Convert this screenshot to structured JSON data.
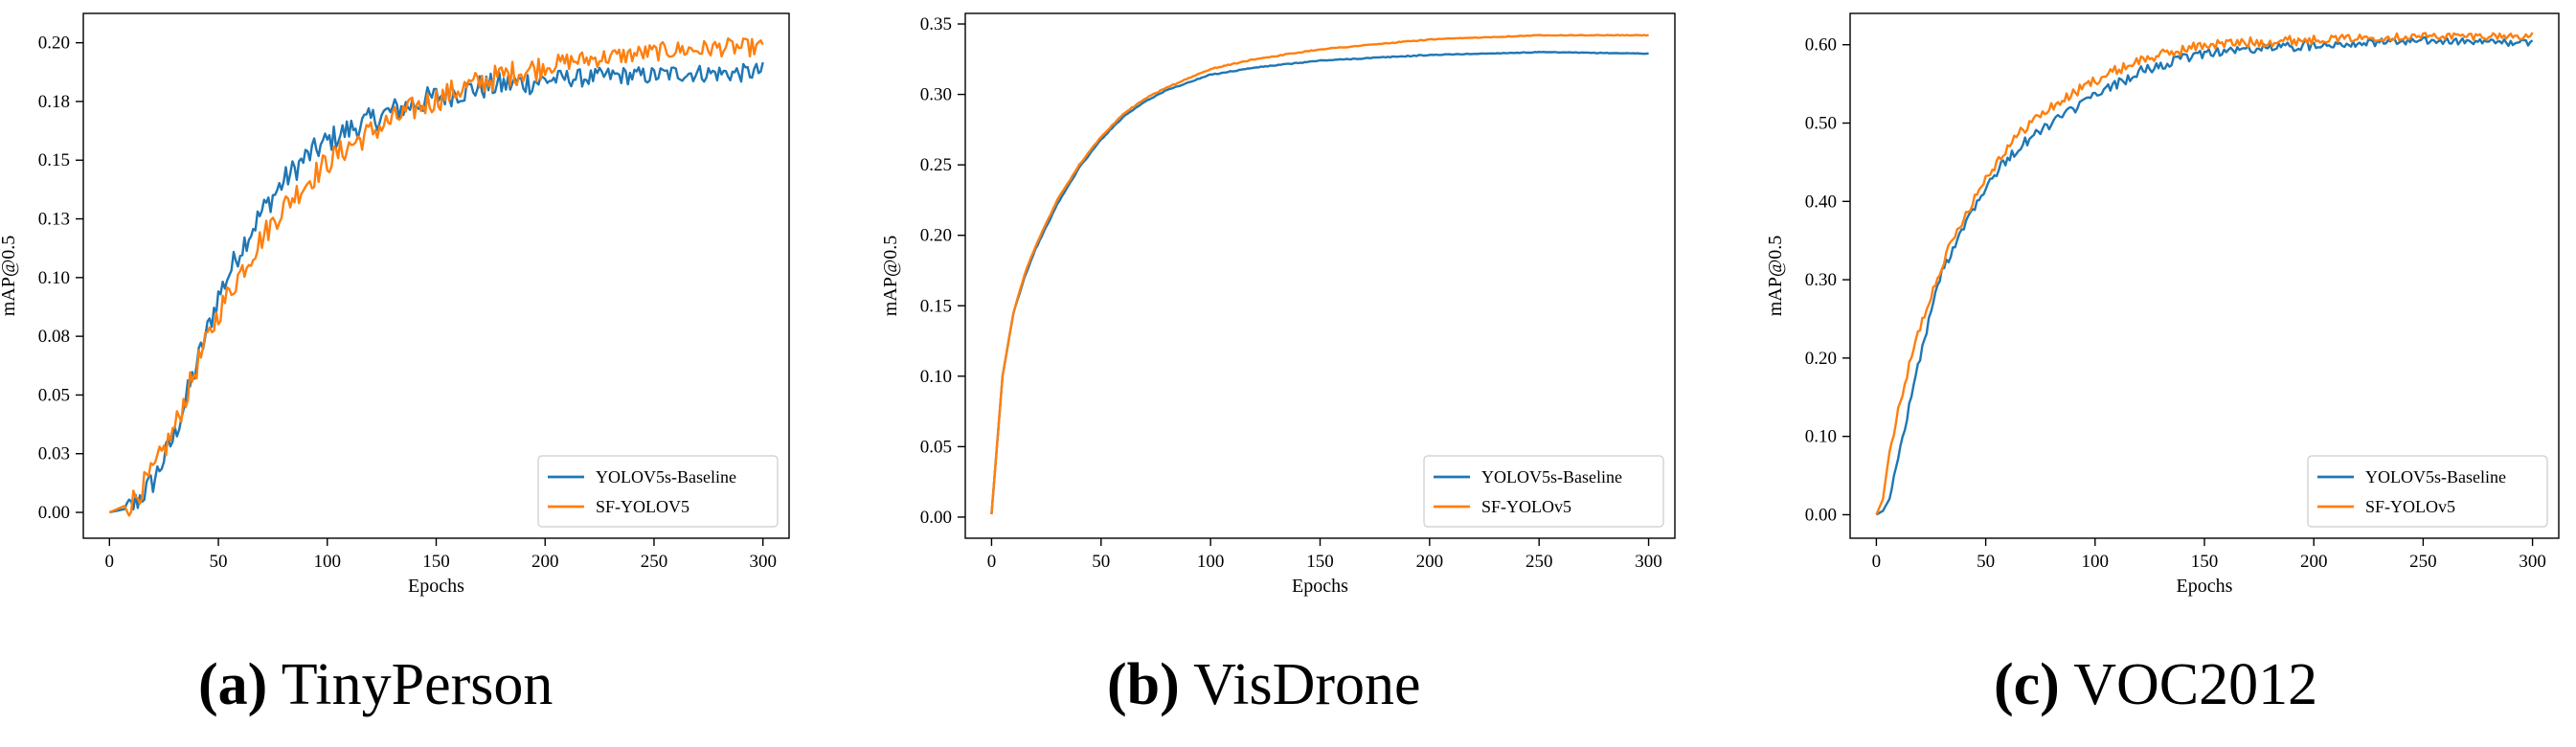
{
  "colors": {
    "baseline": "#1f77b4",
    "sf": "#ff7f0e",
    "axis": "#000000"
  },
  "chart_data": [
    {
      "type": "line",
      "caption_tag": "(a)",
      "caption_title": "TinyPerson",
      "xlabel": "Epochs",
      "ylabel": "mAP@0.5",
      "xlim": [
        -12,
        312
      ],
      "ylim": [
        -0.011,
        0.2125
      ],
      "xticks": [
        0,
        50,
        100,
        150,
        200,
        250,
        300
      ],
      "xtick_labels": [
        "0",
        "50",
        "100",
        "150",
        "200",
        "250",
        "300"
      ],
      "yticks": [
        0.0,
        0.025,
        0.05,
        0.075,
        0.1,
        0.125,
        0.15,
        0.175,
        0.2
      ],
      "ytick_labels": [
        "0.00",
        "0.03",
        "0.05",
        "0.08",
        "0.10",
        "0.13",
        "0.15",
        "0.18",
        "0.20"
      ],
      "legend_loc": "lower-right",
      "series": [
        {
          "name": "YOLOV5s-Baseline",
          "color": "#1f77b4",
          "x": [
            0,
            10,
            20,
            30,
            40,
            50,
            60,
            70,
            80,
            90,
            100,
            110,
            120,
            130,
            140,
            150,
            160,
            170,
            180,
            190,
            200,
            210,
            220,
            230,
            240,
            250,
            260,
            270,
            280,
            290,
            300
          ],
          "values": [
            0.0,
            0.002,
            0.013,
            0.033,
            0.063,
            0.092,
            0.112,
            0.128,
            0.141,
            0.151,
            0.158,
            0.163,
            0.167,
            0.171,
            0.174,
            0.177,
            0.179,
            0.181,
            0.182,
            0.183,
            0.184,
            0.185,
            0.185,
            0.186,
            0.186,
            0.186,
            0.187,
            0.187,
            0.187,
            0.187,
            0.188
          ]
        },
        {
          "name": "SF-YOLOV5",
          "color": "#ff7f0e",
          "x": [
            0,
            10,
            20,
            30,
            40,
            50,
            60,
            70,
            80,
            90,
            100,
            110,
            120,
            130,
            140,
            150,
            160,
            170,
            180,
            190,
            200,
            210,
            220,
            230,
            240,
            250,
            260,
            270,
            280,
            290,
            300
          ],
          "values": [
            0.0,
            0.004,
            0.017,
            0.036,
            0.062,
            0.085,
            0.102,
            0.117,
            0.13,
            0.14,
            0.149,
            0.156,
            0.162,
            0.167,
            0.172,
            0.176,
            0.18,
            0.183,
            0.186,
            0.188,
            0.19,
            0.192,
            0.193,
            0.194,
            0.195,
            0.196,
            0.197,
            0.197,
            0.198,
            0.198,
            0.198
          ]
        }
      ]
    },
    {
      "type": "line",
      "caption_tag": "(b)",
      "caption_title": "VisDrone",
      "xlabel": "Epochs",
      "ylabel": "mAP@0.5",
      "xlim": [
        -12,
        312
      ],
      "ylim": [
        -0.015,
        0.3575
      ],
      "xticks": [
        0,
        50,
        100,
        150,
        200,
        250,
        300
      ],
      "xtick_labels": [
        "0",
        "50",
        "100",
        "150",
        "200",
        "250",
        "300"
      ],
      "yticks": [
        0.0,
        0.05,
        0.1,
        0.15,
        0.2,
        0.25,
        0.3,
        0.35
      ],
      "ytick_labels": [
        "0.00",
        "0.05",
        "0.10",
        "0.15",
        "0.20",
        "0.25",
        "0.30",
        "0.35"
      ],
      "legend_loc": "lower-right",
      "series": [
        {
          "name": "YOLOV5s-Baseline",
          "color": "#1f77b4",
          "x": [
            0,
            5,
            10,
            15,
            20,
            30,
            40,
            50,
            60,
            70,
            80,
            100,
            120,
            150,
            200,
            250,
            300
          ],
          "values": [
            0.002,
            0.1,
            0.145,
            0.17,
            0.19,
            0.222,
            0.248,
            0.268,
            0.284,
            0.295,
            0.303,
            0.314,
            0.319,
            0.324,
            0.328,
            0.33,
            0.329
          ]
        },
        {
          "name": "SF-YOLOv5",
          "color": "#ff7f0e",
          "x": [
            0,
            5,
            10,
            15,
            20,
            30,
            40,
            50,
            60,
            70,
            80,
            100,
            120,
            150,
            200,
            250,
            300
          ],
          "values": [
            0.002,
            0.1,
            0.145,
            0.172,
            0.192,
            0.225,
            0.25,
            0.27,
            0.286,
            0.297,
            0.305,
            0.318,
            0.325,
            0.332,
            0.339,
            0.342,
            0.342
          ]
        }
      ]
    },
    {
      "type": "line",
      "caption_tag": "(c)",
      "caption_title": "VOC2012",
      "xlabel": "Epochs",
      "ylabel": "mAP@0.5",
      "xlim": [
        -12,
        312
      ],
      "ylim": [
        -0.03,
        0.64
      ],
      "xticks": [
        0,
        50,
        100,
        150,
        200,
        250,
        300
      ],
      "xtick_labels": [
        "0",
        "50",
        "100",
        "150",
        "200",
        "250",
        "300"
      ],
      "yticks": [
        0.0,
        0.1,
        0.2,
        0.3,
        0.4,
        0.5,
        0.6
      ],
      "ytick_labels": [
        "0.00",
        "0.10",
        "0.20",
        "0.30",
        "0.40",
        "0.50",
        "0.60"
      ],
      "legend_loc": "lower-right",
      "series": [
        {
          "name": "YOLOV5s-Baseline",
          "color": "#1f77b4",
          "x": [
            0,
            3,
            6,
            10,
            15,
            20,
            25,
            30,
            40,
            50,
            60,
            70,
            80,
            100,
            120,
            150,
            200,
            250,
            300
          ],
          "values": [
            0.0,
            0.005,
            0.02,
            0.07,
            0.14,
            0.2,
            0.26,
            0.31,
            0.37,
            0.42,
            0.455,
            0.48,
            0.5,
            0.535,
            0.565,
            0.59,
            0.6,
            0.605,
            0.602
          ]
        },
        {
          "name": "SF-YOLOv5",
          "color": "#ff7f0e",
          "x": [
            0,
            3,
            6,
            10,
            15,
            20,
            25,
            30,
            40,
            50,
            60,
            70,
            80,
            100,
            120,
            150,
            200,
            250,
            300
          ],
          "values": [
            0.0,
            0.02,
            0.08,
            0.13,
            0.19,
            0.24,
            0.28,
            0.32,
            0.38,
            0.43,
            0.47,
            0.5,
            0.52,
            0.555,
            0.58,
            0.6,
            0.607,
            0.611,
            0.611
          ]
        }
      ]
    }
  ]
}
